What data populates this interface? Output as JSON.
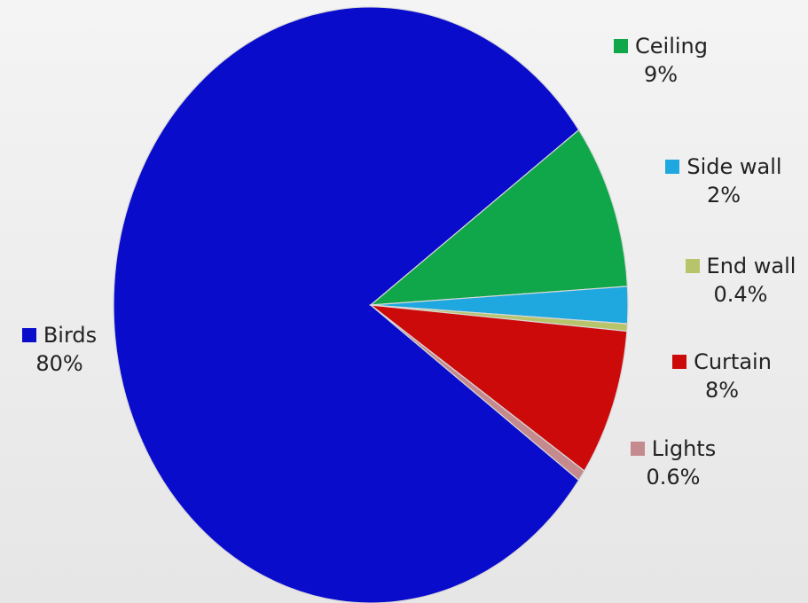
{
  "chart_data": {
    "type": "pie",
    "slices": [
      {
        "label": "Birds",
        "value": 80,
        "display": "80%",
        "color": "#0a0ccc"
      },
      {
        "label": "Ceiling",
        "value": 9,
        "display": "9%",
        "color": "#10a64a"
      },
      {
        "label": "Side wall",
        "value": 2,
        "display": "2%",
        "color": "#1fa8e0"
      },
      {
        "label": "End wall",
        "value": 0.4,
        "display": "0.4%",
        "color": "#b8c46a"
      },
      {
        "label": "Curtain",
        "value": 8,
        "display": "8%",
        "color": "#cc0a0a"
      },
      {
        "label": "Lights",
        "value": 0.6,
        "display": "0.6%",
        "color": "#c48a8e"
      }
    ],
    "legend": "labels beside slices"
  }
}
